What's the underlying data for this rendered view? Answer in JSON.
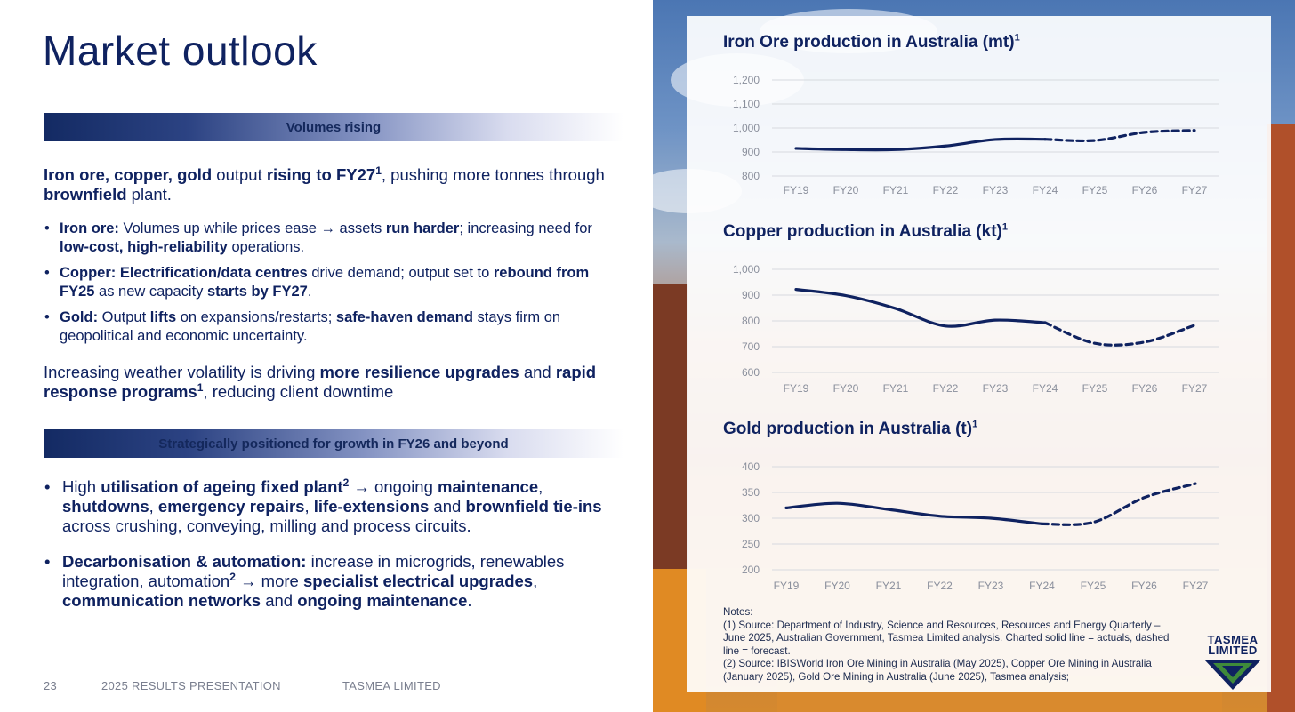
{
  "title": "Market outlook",
  "band1": "Volumes rising",
  "band2": "Strategically positioned for growth in FY26 and beyond",
  "intro": {
    "b1": "Iron ore, copper, gold",
    "t1": " output ",
    "b2": "rising to FY27",
    "sup1": "1",
    "t2": ", pushing more tonnes through ",
    "b3": "brownfield",
    "t3": " plant."
  },
  "bullets1": {
    "iron": {
      "b1": "Iron ore:",
      "t1": " Volumes up while prices ease → assets ",
      "b2": "run harder",
      "t2": "; increasing need for ",
      "b3": "low-cost, high-reliability",
      "t3": " operations."
    },
    "copper": {
      "b1": "Copper: Electrification/data centres",
      "t1": " drive demand; output set to ",
      "b2": "rebound from FY25",
      "t2": " as new capacity ",
      "b3": "starts by FY27",
      "t3": "."
    },
    "gold": {
      "b1": "Gold:",
      "t1": " Output ",
      "b2": "lifts",
      "t2": " on expansions/restarts; ",
      "b3": "safe-haven demand",
      "t3": " stays firm on geopolitical and economic uncertainty."
    }
  },
  "weather": {
    "t1": "Increasing weather volatility is driving ",
    "b1": "more resilience upgrades",
    "t2": " and ",
    "b2": "rapid response programs",
    "sup1": "1",
    "t3": ", reducing client downtime"
  },
  "bullets2": {
    "utilisation": {
      "t0": "High ",
      "b1": "utilisation of ageing fixed plant",
      "sup1": "2",
      "t1": " → ongoing ",
      "b2": "maintenance",
      "t2": ", ",
      "b3": "shutdowns",
      "t3": ", ",
      "b4": "emergency repairs",
      "t4": ", ",
      "b5": "life-extensions",
      "t5": " and ",
      "b6": "brownfield tie-ins",
      "t6": " across crushing, conveying, milling and process circuits."
    },
    "decarb": {
      "b1": "Decarbonisation & automation:",
      "t1": " increase in microgrids, renewables integration, automation",
      "sup1": "2",
      "t2": " → more ",
      "b2": "specialist electrical upgrades",
      "t2b": ", ",
      "b3": "communication networks",
      "t3": " and ",
      "b4": "ongoing maintenance",
      "t4": "."
    }
  },
  "footer": {
    "page": "23",
    "presentation": "2025 RESULTS PRESENTATION",
    "company": "TASMEA LIMITED"
  },
  "colors": {
    "navy": "#0f2260",
    "grid": "#d7d9df"
  },
  "chart_data": [
    {
      "type": "line",
      "title": "Iron Ore production in Australia (mt)",
      "title_sup": "1",
      "categories": [
        "FY19",
        "FY20",
        "FY21",
        "FY22",
        "FY23",
        "FY24",
        "FY25",
        "FY26",
        "FY27"
      ],
      "values": [
        915,
        910,
        910,
        925,
        952,
        953,
        948,
        982,
        990
      ],
      "actual_through": "FY24",
      "forecast_from": "FY24",
      "ylim": [
        800,
        1200
      ],
      "yticks": [
        "800",
        "900",
        "1,000",
        "1,100",
        "1,200"
      ],
      "ytick_values": [
        800,
        900,
        1000,
        1100,
        1200
      ]
    },
    {
      "type": "line",
      "title": "Copper production in Australia (kt)",
      "title_sup": "1",
      "categories": [
        "FY19",
        "FY20",
        "FY21",
        "FY22",
        "FY23",
        "FY24",
        "FY25",
        "FY26",
        "FY27"
      ],
      "values": [
        922,
        898,
        848,
        780,
        803,
        793,
        713,
        718,
        783
      ],
      "actual_through": "FY24",
      "forecast_from": "FY24",
      "ylim": [
        600,
        1000
      ],
      "yticks": [
        "600",
        "700",
        "800",
        "900",
        "1,000"
      ],
      "ytick_values": [
        600,
        700,
        800,
        900,
        1000
      ]
    },
    {
      "type": "line",
      "title": "Gold production in Australia (t)",
      "title_sup": "1",
      "categories": [
        "FY19",
        "FY20",
        "FY21",
        "FY22",
        "FY23",
        "FY24",
        "FY25",
        "FY26",
        "FY27"
      ],
      "values": [
        320,
        329,
        317,
        304,
        300,
        289,
        292,
        340,
        367
      ],
      "actual_through": "FY24",
      "forecast_from": "FY24",
      "ylim": [
        200,
        400
      ],
      "yticks": [
        "200",
        "250",
        "300",
        "350",
        "400"
      ],
      "ytick_values": [
        200,
        250,
        300,
        350,
        400
      ]
    }
  ],
  "notes": {
    "heading": "Notes:",
    "n1": "(1) Source: Department of Industry, Science and Resources, Resources and Energy Quarterly – June 2025, Australian Government, Tasmea Limited analysis. Charted solid line = actuals, dashed line = forecast.",
    "n2": "(2) Source: IBISWorld Iron Ore Mining in Australia (May 2025), Copper Ore Mining in Australia (January 2025), Gold Ore Mining in Australia (June 2025), Tasmea analysis;"
  },
  "logo": {
    "line1": "TASMEA",
    "line2": "LIMITED"
  }
}
